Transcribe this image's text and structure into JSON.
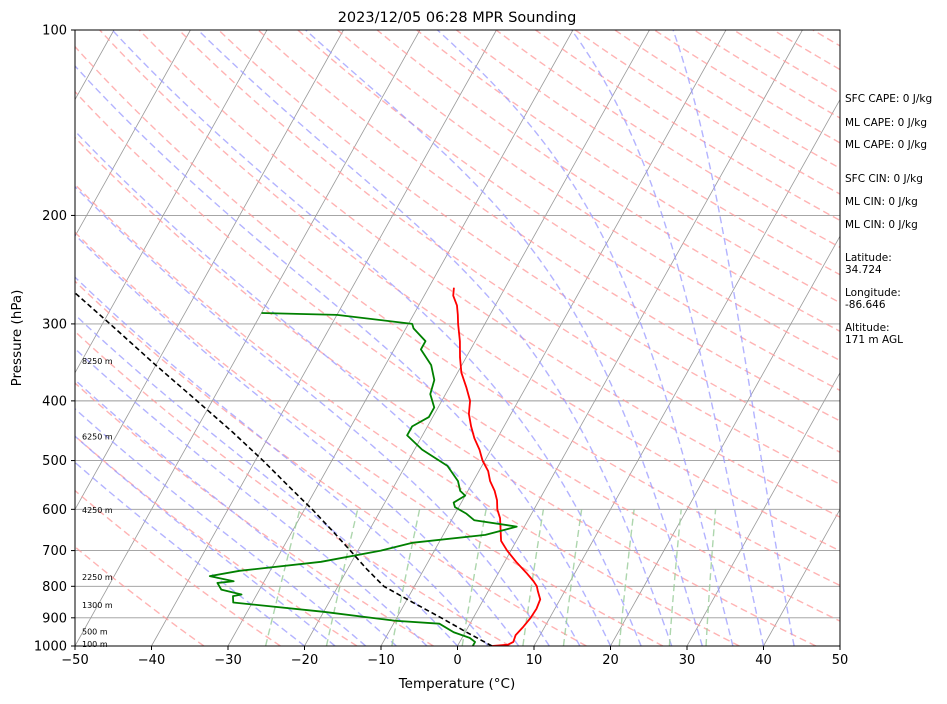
{
  "chart_data": {
    "type": "skew-t",
    "title": "2023/12/05 06:28 MPR Sounding",
    "xlabel": "Temperature (°C)",
    "ylabel": "Pressure (hPa)",
    "xlim": [
      -50,
      50
    ],
    "ylim": [
      1000,
      100
    ],
    "y_scale": "log",
    "x_ticks": [
      -50,
      -40,
      -30,
      -20,
      -10,
      0,
      10,
      20,
      30,
      40,
      50
    ],
    "x_tick_labels": [
      "−50",
      "−40",
      "−30",
      "−20",
      "−10",
      "0",
      "10",
      "20",
      "30",
      "40",
      "50"
    ],
    "y_ticks": [
      100,
      200,
      300,
      400,
      500,
      600,
      700,
      800,
      900,
      1000
    ],
    "y_tick_labels": [
      "100",
      "200",
      "300",
      "400",
      "500",
      "600",
      "700",
      "800",
      "900",
      "1000"
    ],
    "grid": true,
    "colors": {
      "temperature": "#ff0000",
      "dewpoint": "#008000",
      "parcel": "#000000",
      "dry_adiabats": "#ff9999",
      "moist_adiabats": "#9999ff",
      "mixing_ratio": "#99cc99",
      "isotherms": "#999999"
    },
    "series": [
      {
        "role": "temperature",
        "points": [
          [
            1000,
            4.5
          ],
          [
            995,
            6.5
          ],
          [
            985,
            7.0
          ],
          [
            960,
            6.8
          ],
          [
            930,
            7.2
          ],
          [
            900,
            7.5
          ],
          [
            870,
            7.6
          ],
          [
            840,
            7.4
          ],
          [
            815,
            6.5
          ],
          [
            800,
            6.0
          ],
          [
            785,
            5.2
          ],
          [
            760,
            3.6
          ],
          [
            730,
            1.5
          ],
          [
            700,
            -0.5
          ],
          [
            675,
            -2.0
          ],
          [
            650,
            -2.8
          ],
          [
            620,
            -3.8
          ],
          [
            600,
            -4.8
          ],
          [
            580,
            -5.5
          ],
          [
            560,
            -6.5
          ],
          [
            540,
            -7.8
          ],
          [
            520,
            -8.8
          ],
          [
            500,
            -10.3
          ],
          [
            480,
            -11.5
          ],
          [
            460,
            -13.0
          ],
          [
            440,
            -14.3
          ],
          [
            420,
            -15.5
          ],
          [
            400,
            -16.3
          ],
          [
            380,
            -17.8
          ],
          [
            360,
            -19.5
          ],
          [
            340,
            -20.8
          ],
          [
            320,
            -22.0
          ],
          [
            300,
            -23.5
          ],
          [
            290,
            -24.2
          ],
          [
            280,
            -25.0
          ],
          [
            270,
            -26.2
          ],
          [
            262,
            -26.7
          ]
        ]
      },
      {
        "role": "dewpoint",
        "points": [
          [
            1000,
            2.0
          ],
          [
            985,
            2.0
          ],
          [
            970,
            1.0
          ],
          [
            950,
            -1.5
          ],
          [
            920,
            -4.0
          ],
          [
            910,
            -10.0
          ],
          [
            880,
            -20.0
          ],
          [
            850,
            -32.5
          ],
          [
            830,
            -33.0
          ],
          [
            825,
            -32.0
          ],
          [
            810,
            -35.0
          ],
          [
            790,
            -36.0
          ],
          [
            785,
            -34.0
          ],
          [
            770,
            -37.5
          ],
          [
            755,
            -34.0
          ],
          [
            730,
            -24.0
          ],
          [
            700,
            -17.0
          ],
          [
            680,
            -13.5
          ],
          [
            660,
            -4.5
          ],
          [
            640,
            -1.0
          ],
          [
            625,
            -7.0
          ],
          [
            610,
            -8.5
          ],
          [
            595,
            -10.5
          ],
          [
            585,
            -11.0
          ],
          [
            570,
            -10.0
          ],
          [
            560,
            -11.0
          ],
          [
            540,
            -12.0
          ],
          [
            510,
            -14.5
          ],
          [
            480,
            -19.0
          ],
          [
            455,
            -22.0
          ],
          [
            440,
            -22.0
          ],
          [
            425,
            -20.5
          ],
          [
            410,
            -20.5
          ],
          [
            390,
            -22.0
          ],
          [
            370,
            -22.5
          ],
          [
            350,
            -24.0
          ],
          [
            330,
            -26.5
          ],
          [
            320,
            -26.5
          ],
          [
            305,
            -29.0
          ],
          [
            300,
            -29.5
          ],
          [
            290,
            -40.0
          ],
          [
            288,
            -50.0
          ]
        ]
      },
      {
        "role": "parcel",
        "points": [
          [
            1000,
            4.5
          ],
          [
            950,
            0.2
          ],
          [
            900,
            -4.2
          ],
          [
            850,
            -9.0
          ],
          [
            800,
            -14.0
          ],
          [
            750,
            -17.5
          ],
          [
            700,
            -21.0
          ],
          [
            650,
            -24.8
          ],
          [
            600,
            -29.0
          ],
          [
            550,
            -33.8
          ],
          [
            500,
            -39.0
          ],
          [
            450,
            -45.0
          ],
          [
            400,
            -52.0
          ],
          [
            350,
            -60.0
          ],
          [
            300,
            -69.0
          ],
          [
            262,
            -77.0
          ]
        ]
      }
    ],
    "altitude_labels": [
      {
        "p": 1000,
        "text": "100 m"
      },
      {
        "p": 955,
        "text": "500 m"
      },
      {
        "p": 864,
        "text": "1300 m"
      },
      {
        "p": 778,
        "text": "2250 m"
      },
      {
        "p": 606,
        "text": "4250 m"
      },
      {
        "p": 460,
        "text": "6250 m"
      },
      {
        "p": 347,
        "text": "8250 m"
      }
    ],
    "info_panel": [
      "SFC CAPE: 0 J/kg",
      "ML CAPE: 0 J/kg",
      "ML CAPE: 0 J/kg",
      "SFC CIN: 0 J/kg",
      "ML CIN: 0 J/kg",
      "ML CIN: 0 J/kg",
      "Latitude:",
      "34.724",
      "Longitude:",
      "-86.646",
      "Altitude:",
      "171 m AGL"
    ]
  }
}
